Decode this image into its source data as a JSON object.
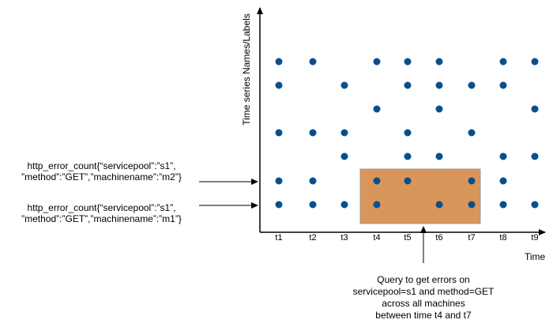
{
  "diagram": {
    "y_axis_label": "Time series Names/Labels",
    "x_axis_label": "Time",
    "time_ticks": [
      "t1",
      "t2",
      "t3",
      "t4",
      "t5",
      "t6",
      "t7",
      "t8",
      "t9"
    ],
    "series_label_1": [
      "http_error_count{“servicepool”:”s1”,",
      "”method”:”GET”,”machinename”:”m2”}"
    ],
    "series_label_2": [
      "http_error_count{“servicepool”:”s1”,",
      "”method”:”GET”,”machinename”:”m1”}"
    ],
    "query_note": [
      "Query to get errors on",
      "servicepool=s1 and method=GET",
      "across all machines",
      "between time t4 and t7"
    ],
    "colors": {
      "point": "#0a4f8c",
      "highlight": "#d9955a",
      "highlight_border": "#9a9a9a"
    },
    "rows": [
      [
        "t1",
        "t2",
        "t4",
        "t5",
        "t6",
        "t8",
        "t9"
      ],
      [
        "t1",
        "t3",
        "t5",
        "t6",
        "t7",
        "t8"
      ],
      [
        "t4",
        "t6",
        "t9"
      ],
      [
        "t1",
        "t2",
        "t3",
        "t5",
        "t7"
      ],
      [
        "t3",
        "t5",
        "t6",
        "t8",
        "t9"
      ],
      [
        "t1",
        "t2",
        "t4",
        "t5",
        "t7",
        "t8"
      ],
      [
        "t1",
        "t2",
        "t3",
        "t4",
        "t6",
        "t7",
        "t8",
        "t9"
      ]
    ],
    "highlight_range": [
      "t4",
      "t7"
    ]
  }
}
